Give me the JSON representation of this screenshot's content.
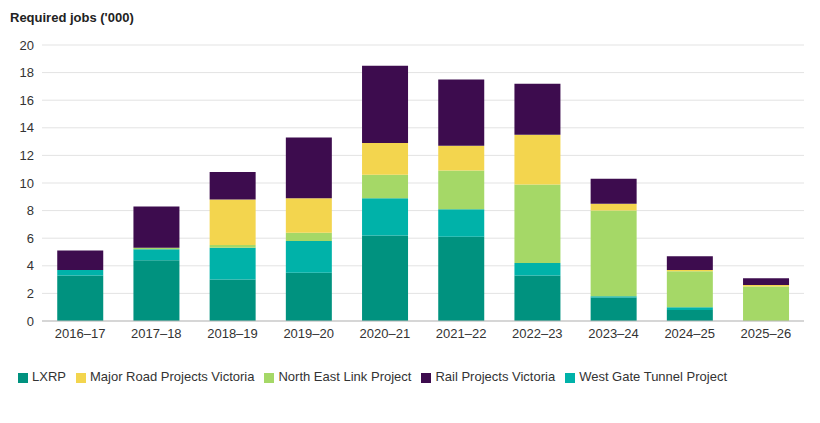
{
  "chart_data": {
    "type": "bar",
    "y_label": "Required jobs ('000)",
    "categories": [
      "2016–17",
      "2017–18",
      "2018–19",
      "2019–20",
      "2020–21",
      "2021–22",
      "2022–23",
      "2023–24",
      "2024–25",
      "2025–26"
    ],
    "series": [
      {
        "name": "LXRP",
        "color": "#00927f",
        "values": [
          3.3,
          4.4,
          3.0,
          3.5,
          6.2,
          6.1,
          3.3,
          1.7,
          0.8,
          0
        ]
      },
      {
        "name": "West Gate Tunnel Project",
        "color": "#00b2a9",
        "values": [
          0.4,
          0.8,
          2.3,
          2.3,
          2.7,
          2.0,
          0.9,
          0.1,
          0.2,
          0
        ]
      },
      {
        "name": "North East Link Project",
        "color": "#a5d867",
        "values": [
          0,
          0.1,
          0.2,
          0.6,
          1.7,
          2.8,
          5.7,
          6.2,
          2.6,
          2.5
        ]
      },
      {
        "name": "Major Road Projects Victoria",
        "color": "#f3d54e",
        "values": [
          0,
          0,
          3.3,
          2.5,
          2.3,
          1.8,
          3.6,
          0.5,
          0.1,
          0.1
        ]
      },
      {
        "name": "Rail Projects Victoria",
        "color": "#3d0c4e",
        "values": [
          1.4,
          3.0,
          2.0,
          4.4,
          5.6,
          4.8,
          3.7,
          1.8,
          1.0,
          0.5
        ]
      }
    ],
    "ylim": [
      0,
      20
    ],
    "yticks": [
      0,
      2,
      4,
      6,
      8,
      10,
      12,
      14,
      16,
      18,
      20
    ],
    "grid": true,
    "stacked": true,
    "legend": "bottom"
  }
}
